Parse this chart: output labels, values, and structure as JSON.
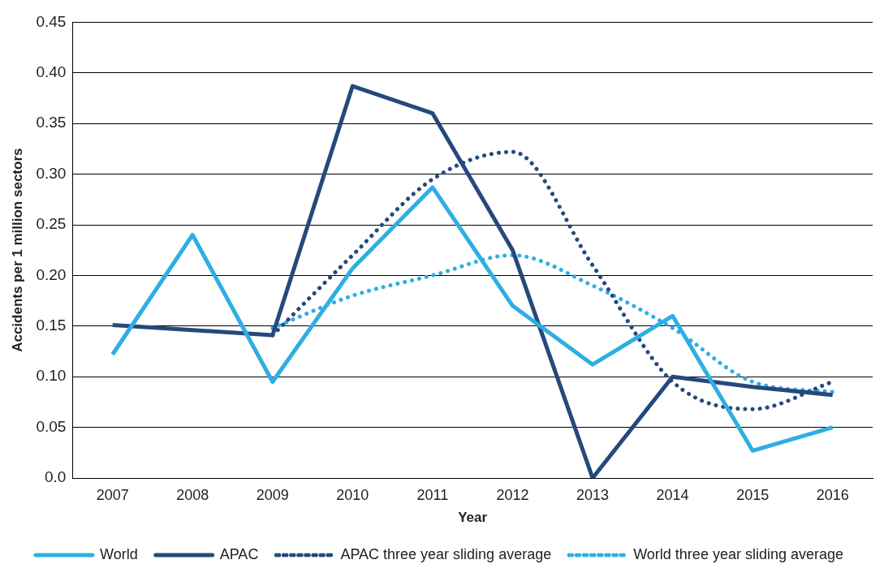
{
  "chart_data": {
    "type": "line",
    "xlabel": "Year",
    "ylabel": "Accidents per 1 million sectors",
    "categories": [
      "2007",
      "2008",
      "2009",
      "2010",
      "2011",
      "2012",
      "2013",
      "2014",
      "2015",
      "2016"
    ],
    "series": [
      {
        "name": "World",
        "color": "#2eaee3",
        "line_style": "solid",
        "values": [
          0.122,
          0.24,
          0.095,
          0.207,
          0.287,
          0.17,
          0.112,
          0.16,
          0.027,
          0.05
        ]
      },
      {
        "name": "APAC",
        "color": "#25497c",
        "line_style": "solid",
        "values": [
          0.151,
          0.146,
          0.141,
          0.387,
          0.36,
          0.225,
          0.0,
          0.1,
          0.09,
          0.082
        ]
      },
      {
        "name": "APAC three year sliding average",
        "color": "#25497c",
        "line_style": "dotted",
        "values": [
          null,
          null,
          0.141,
          0.22,
          0.295,
          0.322,
          0.21,
          0.095,
          0.068,
          0.095
        ]
      },
      {
        "name": "World three year sliding average",
        "color": "#2eaee3",
        "line_style": "dotted",
        "values": [
          null,
          null,
          0.148,
          0.18,
          0.2,
          0.22,
          0.19,
          0.148,
          0.095,
          0.085
        ]
      }
    ],
    "ylim": [
      0,
      0.45
    ],
    "yticks": [
      {
        "value": 0,
        "label": "0.0"
      },
      {
        "value": 0.05,
        "label": "0.05"
      },
      {
        "value": 0.1,
        "label": "0.10"
      },
      {
        "value": 0.15,
        "label": "0.15"
      },
      {
        "value": 0.2,
        "label": "0.20"
      },
      {
        "value": 0.25,
        "label": "0.25"
      },
      {
        "value": 0.3,
        "label": "0.30"
      },
      {
        "value": 0.35,
        "label": "0.35"
      },
      {
        "value": 0.4,
        "label": "0.40"
      },
      {
        "value": 0.45,
        "label": "0.45"
      }
    ],
    "grid": "y",
    "legend": "bottom",
    "marker": "none"
  }
}
